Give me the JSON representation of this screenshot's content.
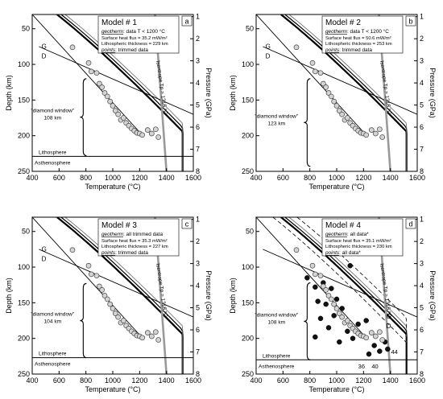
{
  "chart_data": [
    {
      "type": "scatter",
      "panel_letter": "a",
      "model_title": "Model # 1",
      "geotherm_label": "geotherm",
      "geotherm_text": ": data T < 1200 °C",
      "heat_flux_text": "Surface heat flux = 35.2 mW/m²",
      "thickness_text": "Lithospheric thickness = 229 km",
      "points_label": "points",
      "points_text": ": trimmed data",
      "diamond_window_label": "\"diamond window\"",
      "diamond_window_depth": "108 km",
      "isentrope_label": "Isentrope Tp = 1315 °C",
      "lithosphere_label": "Lithosphere",
      "asthenosphere_label": "Asthenosphere",
      "graphite_label": "G",
      "diamond_label": "D",
      "xlabel": "Temperature (°C)",
      "ylabel": "Depth (km)",
      "y2label": "Pressure (GPa)",
      "xlim": [
        400,
        1600
      ],
      "ylim": [
        250,
        30
      ],
      "x_ticks": [
        "400",
        "600",
        "800",
        "1000",
        "1200",
        "1400",
        "1600"
      ],
      "y_ticks": [
        "50",
        "100",
        "150",
        "200",
        "250"
      ],
      "p_ticks": [
        "1",
        "2",
        "3",
        "4",
        "5",
        "6",
        "7",
        "8"
      ],
      "lithosphere_depth": 229,
      "diamond_window": [
        120,
        228
      ],
      "xenolith_points": [
        [
          700,
          76
        ],
        [
          820,
          98
        ],
        [
          840,
          110
        ],
        [
          880,
          112
        ],
        [
          900,
          127
        ],
        [
          920,
          132
        ],
        [
          940,
          140
        ],
        [
          960,
          145
        ],
        [
          980,
          152
        ],
        [
          1000,
          158
        ],
        [
          1020,
          165
        ],
        [
          1040,
          170
        ],
        [
          1060,
          178
        ],
        [
          1080,
          175
        ],
        [
          1100,
          182
        ],
        [
          1120,
          186
        ],
        [
          1140,
          190
        ],
        [
          1160,
          193
        ],
        [
          1180,
          196
        ],
        [
          1200,
          197
        ],
        [
          1220,
          199
        ],
        [
          1260,
          192
        ],
        [
          1290,
          197
        ],
        [
          1320,
          191
        ],
        [
          1340,
          202
        ]
      ],
      "extra_points": []
    },
    {
      "type": "scatter",
      "panel_letter": "b",
      "model_title": "Model # 2",
      "geotherm_label": "geotherm",
      "geotherm_text": ": data T < 1200 °C",
      "heat_flux_text": "Surface heat flux = 50.6 mW/m²",
      "thickness_text": "Lithospheric thickness = 253 km",
      "points_label": "points",
      "points_text": ": trimmed data",
      "diamond_window_label": "\"diamond window\"",
      "diamond_window_depth": "123 km",
      "isentrope_label": "Isentrope Tp = 1315 °C",
      "lithosphere_label": "",
      "asthenosphere_label": "",
      "graphite_label": "G",
      "diamond_label": "D",
      "xlabel": "Temperature (°C)",
      "ylabel": "Depth (km)",
      "y2label": "Pressure (GPa)",
      "xlim": [
        400,
        1600
      ],
      "ylim": [
        250,
        30
      ],
      "x_ticks": [
        "400",
        "600",
        "800",
        "1000",
        "1200",
        "1400",
        "1600"
      ],
      "y_ticks": [
        "50",
        "100",
        "150",
        "200",
        "250"
      ],
      "p_ticks": [
        "1",
        "2",
        "3",
        "4",
        "5",
        "6",
        "7",
        "8"
      ],
      "lithosphere_depth": null,
      "diamond_window": [
        120,
        243
      ],
      "xenolith_points": [
        [
          700,
          76
        ],
        [
          820,
          98
        ],
        [
          840,
          110
        ],
        [
          880,
          112
        ],
        [
          900,
          127
        ],
        [
          920,
          132
        ],
        [
          940,
          140
        ],
        [
          960,
          145
        ],
        [
          980,
          152
        ],
        [
          1000,
          158
        ],
        [
          1020,
          165
        ],
        [
          1040,
          170
        ],
        [
          1060,
          178
        ],
        [
          1080,
          175
        ],
        [
          1100,
          182
        ],
        [
          1120,
          186
        ],
        [
          1140,
          190
        ],
        [
          1160,
          193
        ],
        [
          1180,
          196
        ],
        [
          1200,
          197
        ],
        [
          1220,
          199
        ],
        [
          1260,
          192
        ],
        [
          1290,
          197
        ],
        [
          1320,
          191
        ],
        [
          1340,
          202
        ]
      ],
      "extra_points": []
    },
    {
      "type": "scatter",
      "panel_letter": "c",
      "model_title": "Model # 3",
      "geotherm_label": "geotherm",
      "geotherm_text": ": all trimmed data",
      "heat_flux_text": "Surface heat flux = 35.3 mW/m²",
      "thickness_text": "Lithospheric thickness = 227 km",
      "points_label": "points",
      "points_text": ": trimmed data",
      "diamond_window_label": "\"diamond window\"",
      "diamond_window_depth": "104 km",
      "isentrope_label": "Isentrope Tp = 1315 °C",
      "lithosphere_label": "Lithosphere",
      "asthenosphere_label": "Asthenosphere",
      "graphite_label": "G",
      "diamond_label": "D",
      "xlabel": "Temperature (°C)",
      "ylabel": "Depth (km)",
      "y2label": "Pressure (GPa)",
      "xlim": [
        400,
        1600
      ],
      "ylim": [
        250,
        30
      ],
      "x_ticks": [
        "400",
        "600",
        "800",
        "1000",
        "1200",
        "1400",
        "1600"
      ],
      "y_ticks": [
        "50",
        "100",
        "150",
        "200",
        "250"
      ],
      "p_ticks": [
        "1",
        "2",
        "3",
        "4",
        "5",
        "6",
        "7",
        "8"
      ],
      "lithosphere_depth": 227,
      "diamond_window": [
        123,
        227
      ],
      "xenolith_points": [
        [
          700,
          76
        ],
        [
          820,
          98
        ],
        [
          840,
          110
        ],
        [
          880,
          112
        ],
        [
          900,
          127
        ],
        [
          920,
          132
        ],
        [
          940,
          140
        ],
        [
          960,
          145
        ],
        [
          980,
          152
        ],
        [
          1000,
          158
        ],
        [
          1020,
          165
        ],
        [
          1040,
          170
        ],
        [
          1060,
          178
        ],
        [
          1080,
          175
        ],
        [
          1100,
          182
        ],
        [
          1120,
          186
        ],
        [
          1140,
          190
        ],
        [
          1160,
          193
        ],
        [
          1180,
          196
        ],
        [
          1200,
          197
        ],
        [
          1220,
          199
        ],
        [
          1260,
          192
        ],
        [
          1290,
          197
        ],
        [
          1320,
          191
        ],
        [
          1340,
          202
        ]
      ],
      "extra_points": []
    },
    {
      "type": "scatter",
      "panel_letter": "d",
      "model_title": "Model # 4",
      "geotherm_label": "geotherm",
      "geotherm_text": ": all data*",
      "heat_flux_text": "Surface heat flux = 35.1 mW/m²",
      "thickness_text": "Lithospheric thickness = 230 km",
      "points_label": "points",
      "points_text": ": all data*",
      "diamond_window_label": "\"diamond window\"",
      "diamond_window_depth": "108 km",
      "isentrope_label": "Isentrope Tp = 1315 °C",
      "lithosphere_label": "Lithosphere",
      "asthenosphere_label": "Asthenosphere",
      "graphite_label": "G",
      "diamond_label": "D",
      "xlabel": "Temperature (°C)",
      "ylabel": "Depth (km)",
      "y2label": "Pressure (GPa)",
      "xlim": [
        400,
        1600
      ],
      "ylim": [
        250,
        30
      ],
      "x_ticks": [
        "400",
        "600",
        "800",
        "1000",
        "1200",
        "1400",
        "1600"
      ],
      "y_ticks": [
        "50",
        "100",
        "150",
        "200",
        "250"
      ],
      "p_ticks": [
        "1",
        "2",
        "3",
        "4",
        "5",
        "6",
        "7",
        "8"
      ],
      "lithosphere_depth": 230,
      "diamond_window": [
        122,
        230
      ],
      "geotherm_numbers": [
        "36",
        "40",
        "44"
      ],
      "xenolith_points": [
        [
          700,
          76
        ],
        [
          820,
          98
        ],
        [
          840,
          110
        ],
        [
          880,
          112
        ],
        [
          900,
          127
        ],
        [
          920,
          132
        ],
        [
          940,
          140
        ],
        [
          960,
          145
        ],
        [
          980,
          152
        ],
        [
          1000,
          158
        ],
        [
          1020,
          165
        ],
        [
          1040,
          170
        ],
        [
          1060,
          178
        ],
        [
          1080,
          175
        ],
        [
          1100,
          182
        ],
        [
          1120,
          186
        ],
        [
          1140,
          190
        ],
        [
          1160,
          193
        ],
        [
          1180,
          196
        ],
        [
          1200,
          197
        ],
        [
          1220,
          199
        ],
        [
          1260,
          192
        ],
        [
          1290,
          197
        ],
        [
          1320,
          191
        ],
        [
          1340,
          202
        ]
      ],
      "extra_points": [
        [
          930,
          68
        ],
        [
          1100,
          98
        ],
        [
          780,
          115
        ],
        [
          840,
          128
        ],
        [
          900,
          122
        ],
        [
          960,
          130
        ],
        [
          860,
          148
        ],
        [
          920,
          152
        ],
        [
          1000,
          145
        ],
        [
          980,
          168
        ],
        [
          1040,
          158
        ],
        [
          880,
          172
        ],
        [
          940,
          185
        ],
        [
          1080,
          190
        ],
        [
          1160,
          180
        ],
        [
          1220,
          175
        ],
        [
          1280,
          210
        ],
        [
          1320,
          218
        ],
        [
          1380,
          215
        ],
        [
          840,
          198
        ],
        [
          1020,
          205
        ],
        [
          1120,
          200
        ],
        [
          1240,
          222
        ],
        [
          1360,
          205
        ]
      ]
    }
  ],
  "colors": {
    "axis": "#000000",
    "isentrope": "#9a9a9a",
    "marker_fill": "#d4d4d4",
    "marker_stroke": "#444444",
    "extra_marker": "#111111"
  }
}
